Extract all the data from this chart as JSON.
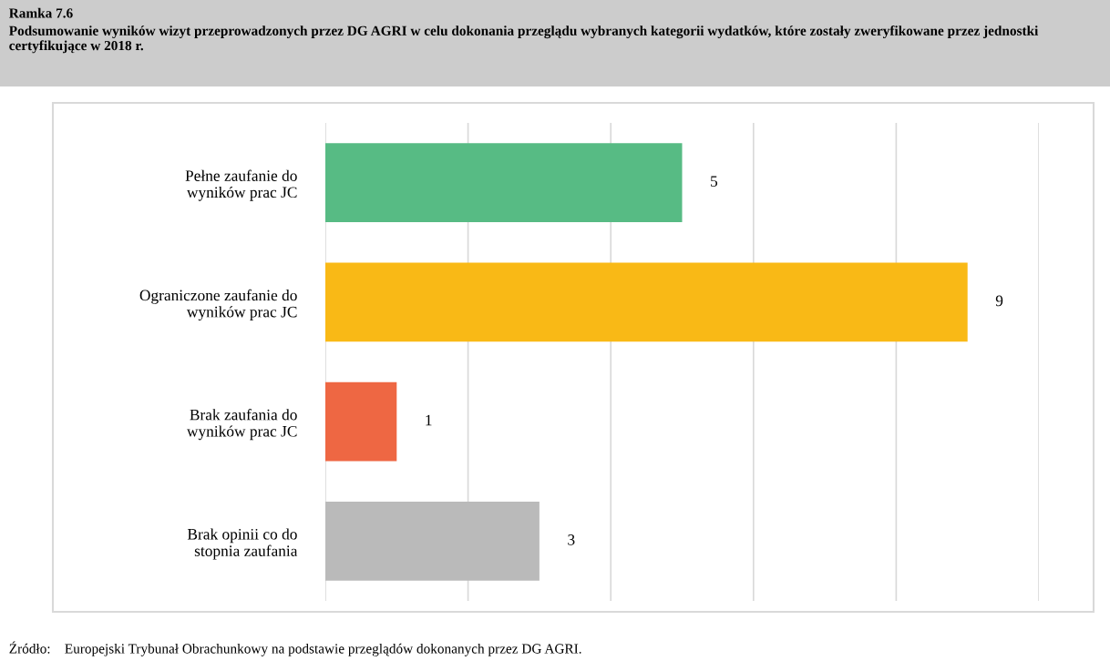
{
  "chart_data": {
    "type": "bar",
    "orientation": "horizontal",
    "title": "Ramka 7.6",
    "subtitle": "Podsumowanie wyników wizyt przeprowadzonych przez DG AGRI w celu dokonania przeglądu wybranych kategorii wydatków, które zostały zweryfikowane przez jednostki certyfikujące w 2018 r.",
    "categories": [
      "Pełne zaufanie do\nwyników prac JC",
      "Ograniczone zaufanie do\nwyników prac JC",
      "Brak zaufania do\nwyników prac JC",
      "Brak opinii co do\nstopnia zaufania"
    ],
    "values": [
      5,
      9,
      1,
      3
    ],
    "colors": [
      "#57bb84",
      "#f9b916",
      "#ee6743",
      "#bababa"
    ],
    "xlim": [
      0,
      10
    ],
    "xticks": [
      {
        "value": 0,
        "label": null
      },
      {
        "value": 2,
        "label": null
      },
      {
        "value": 4,
        "label": null
      },
      {
        "value": 6,
        "label": null
      },
      {
        "value": 8,
        "label": null
      },
      {
        "value": 10,
        "label": null
      }
    ],
    "tick_labels": "y",
    "grid": "x",
    "data_labels": true,
    "legend": false,
    "annotations": [
      "Źródło:    Europejski Trybunał Obrachunkowy na podstawie przeglądów dokonanych przez DG AGRI."
    ]
  }
}
